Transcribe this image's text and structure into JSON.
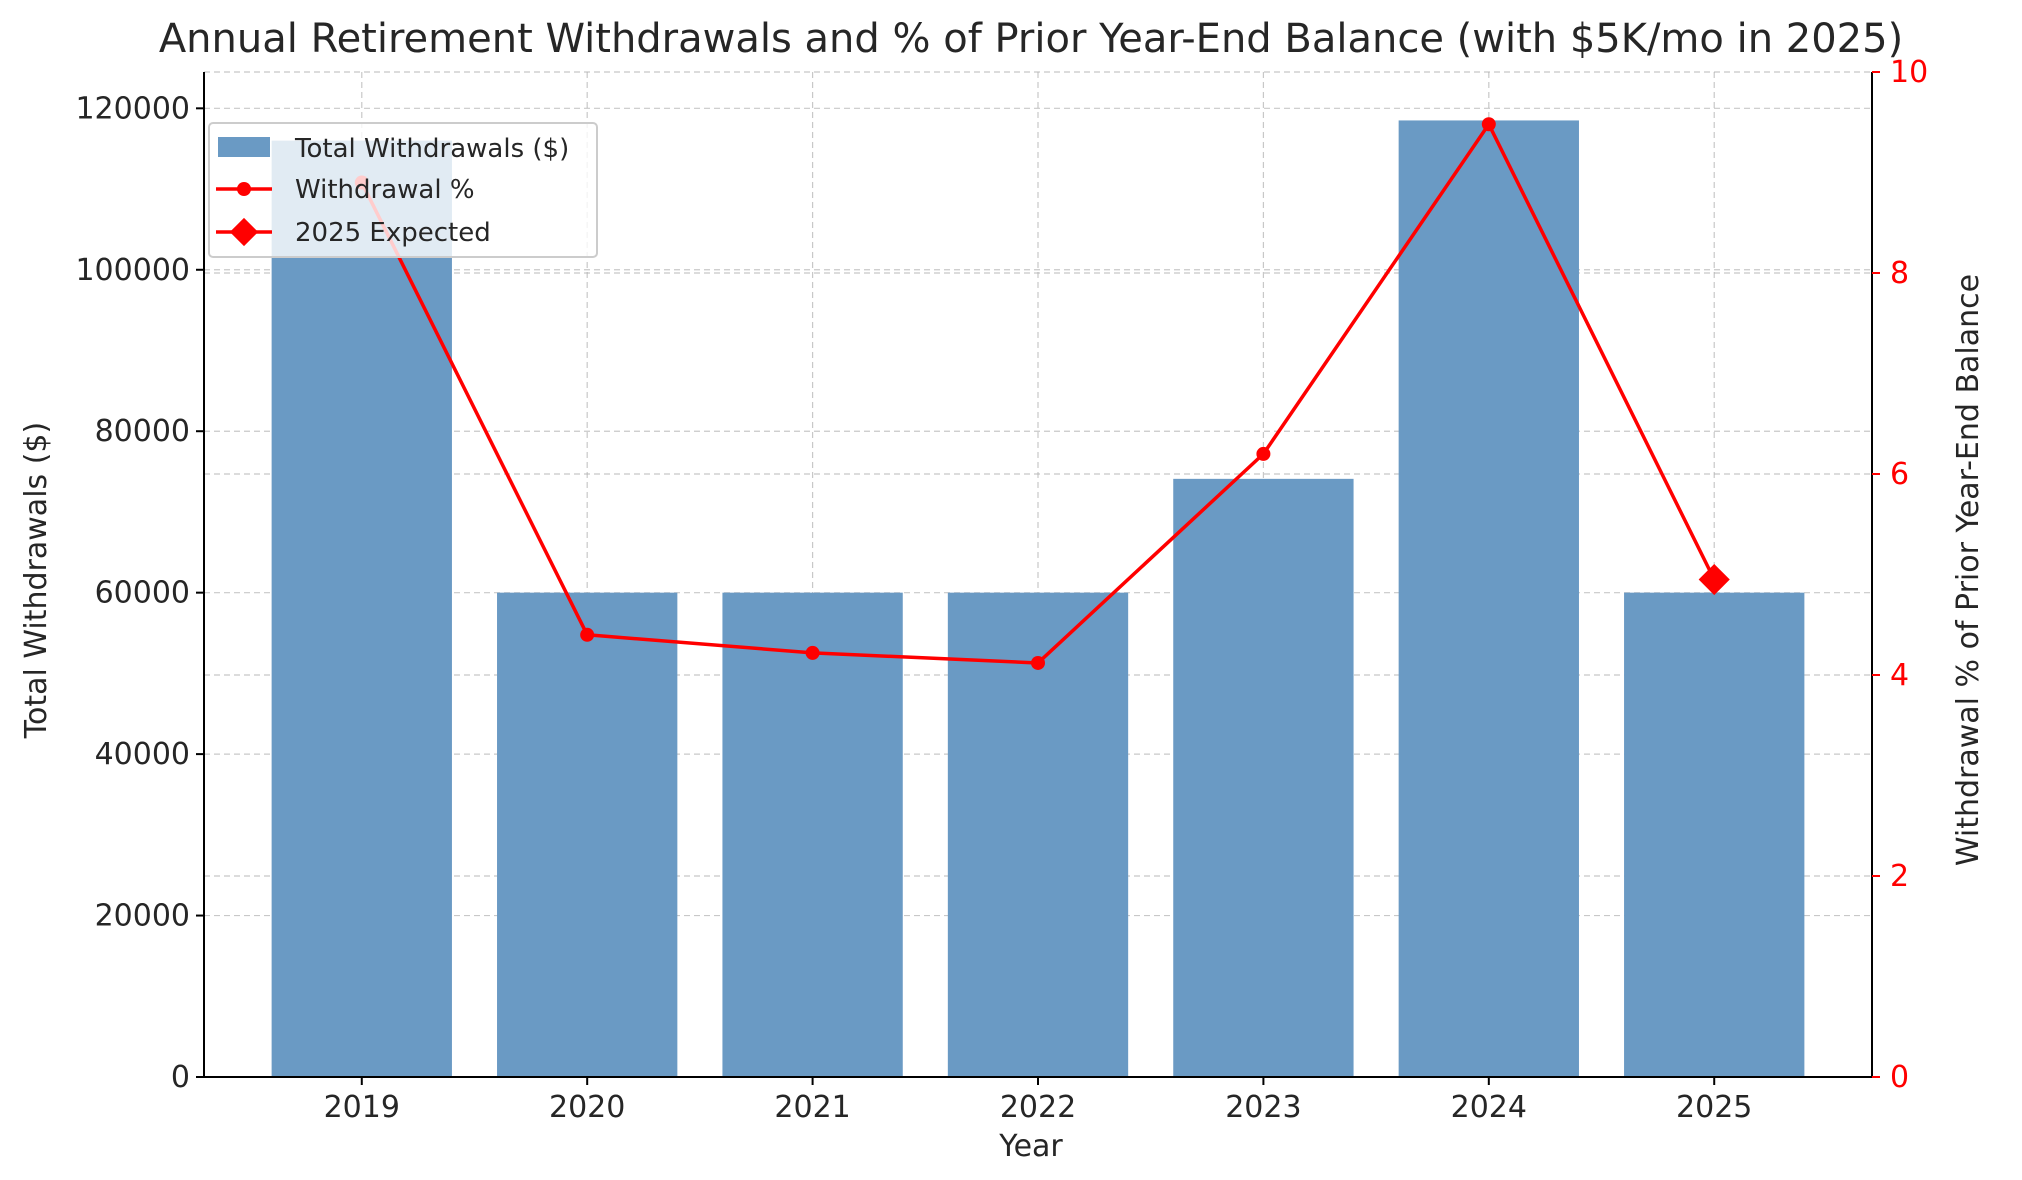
{
  "chart_data": {
    "type": "bar",
    "title": "Annual Retirement Withdrawals and % of Prior Year-End Balance (with $5K/mo in 2025)",
    "xlabel": "Year",
    "ylabel": "Total Withdrawals ($)",
    "y2label": "Withdrawal % of Prior Year-End Balance",
    "categories": [
      "2019",
      "2020",
      "2021",
      "2022",
      "2023",
      "2024",
      "2025"
    ],
    "ylim": [
      0,
      124500
    ],
    "y2lim": [
      0,
      10
    ],
    "yticks": [
      0,
      20000,
      40000,
      60000,
      80000,
      100000,
      120000
    ],
    "y2ticks": [
      0,
      2,
      4,
      6,
      8,
      10
    ],
    "grid": true,
    "legend_position": "top-left",
    "series": [
      {
        "name": "Total Withdrawals ($)",
        "type": "bar",
        "axis": "left",
        "color": "#6a9ac4",
        "values": [
          116000,
          60000,
          60000,
          60000,
          74100,
          118500,
          60000
        ]
      },
      {
        "name": "Withdrawal %",
        "type": "line",
        "axis": "right",
        "color": "#ff0000",
        "marker": "circle",
        "values": [
          8.9,
          4.4,
          4.22,
          4.12,
          6.2,
          9.48,
          4.95
        ]
      },
      {
        "name": "2025 Expected",
        "type": "marker",
        "axis": "right",
        "color": "#ff0000",
        "marker": "diamond",
        "x": "2025",
        "value": 4.95
      }
    ]
  }
}
